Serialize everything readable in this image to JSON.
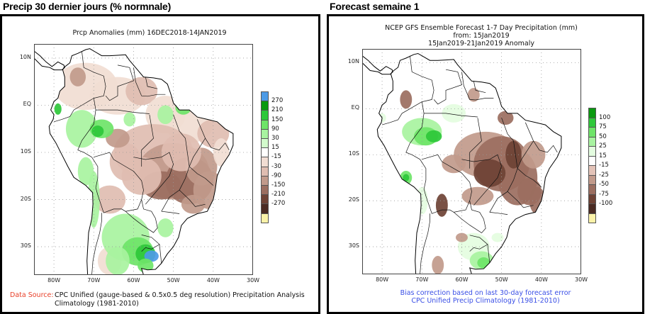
{
  "left": {
    "heading": "Precip 30 dernier jours (% normnale)",
    "title": "Prcp Anomalies (mm) 16DEC2018-14JAN2019",
    "lat_labels": [
      "10N",
      "EQ",
      "10S",
      "20S",
      "30S"
    ],
    "lon_labels": [
      "80W",
      "70W",
      "60W",
      "50W",
      "40W",
      "30W"
    ],
    "colorbar": {
      "levels": [
        "270",
        "210",
        "150",
        "90",
        "30",
        "15",
        "-15",
        "-30",
        "-90",
        "-150",
        "-210",
        "-270"
      ],
      "colors": [
        "#4d9be6",
        "#0a9a10",
        "#2ec83a",
        "#6ee468",
        "#a8f3a0",
        "#d2fbcc",
        "#ffffff",
        "#f1ddd3",
        "#dfbdb1",
        "#c19a8b",
        "#9b6e60",
        "#6e4235",
        "#4a2a22",
        "#fbf2a8"
      ]
    },
    "footer_label": "Data Source:",
    "footer_line1": "CPC Unified (gauge-based & 0.5x0.5 deg resolution) Precipitation Analysis",
    "footer_line2": "Climatology (1981-2010)",
    "footer_label_color": "#e8402a"
  },
  "right": {
    "heading": "Forecast semaine 1",
    "title_line1": "NCEP GFS Ensemble Forecast 1-7 Day Precipitation (mm)",
    "title_line2": "from: 15Jan2019",
    "title_line3": "15Jan2019-21Jan2019 Anomaly",
    "lat_labels": [
      "10N",
      "EQ",
      "10S",
      "20S",
      "30S"
    ],
    "lon_labels": [
      "80W",
      "70W",
      "60W",
      "50W",
      "40W",
      "30W"
    ],
    "colorbar": {
      "levels": [
        "100",
        "75",
        "50",
        "25",
        "15",
        "-15",
        "-25",
        "-50",
        "-75",
        "-100"
      ],
      "colors": [
        "#0a9a10",
        "#2ec83a",
        "#6ee468",
        "#a8f3a0",
        "#e4fde0",
        "#ffffff",
        "#e3c3b8",
        "#c19a8b",
        "#9b6e60",
        "#6e4235",
        "#4a2a22",
        "#fbf2a8"
      ]
    },
    "footer_line1": "Bias correction based on last 30-day forecast error",
    "footer_line2": "CPC Unified Precip Climatology (1981-2010)",
    "footer_color": "#3a4fe6"
  }
}
